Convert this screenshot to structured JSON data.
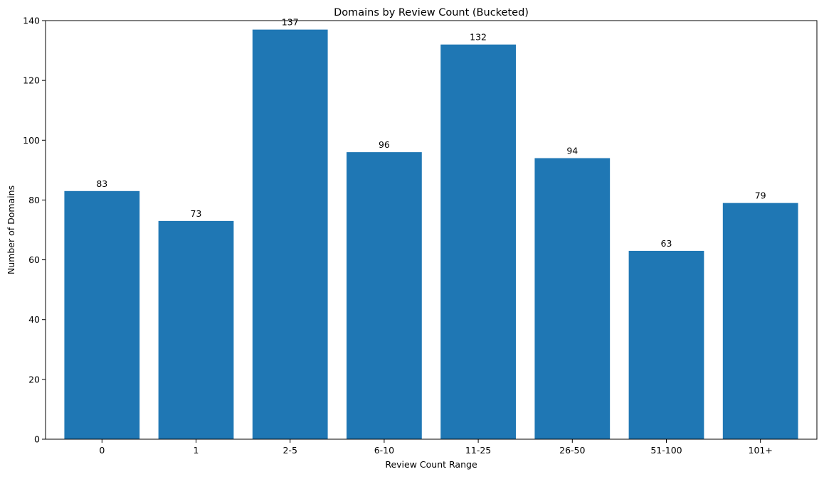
{
  "chart_data": {
    "type": "bar",
    "title": "Domains by Review Count (Bucketed)",
    "xlabel": "Review Count Range",
    "ylabel": "Number of Domains",
    "categories": [
      "0",
      "1",
      "2-5",
      "6-10",
      "11-25",
      "26-50",
      "51-100",
      "101+"
    ],
    "values": [
      83,
      73,
      137,
      96,
      132,
      94,
      63,
      79
    ],
    "ylim": [
      0,
      140
    ],
    "yticks": [
      0,
      20,
      40,
      60,
      80,
      100,
      120,
      140
    ],
    "grid": false,
    "legend": "none",
    "bar_color": "#1f77b4",
    "data_labels": true
  }
}
